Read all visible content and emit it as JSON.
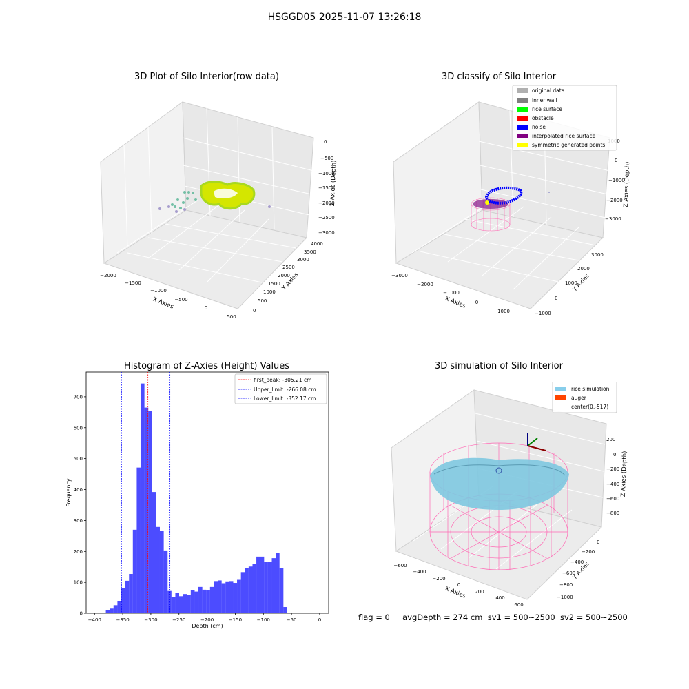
{
  "suptitle": "HSGGD05 2025-11-07 13:26:18",
  "panels": {
    "raw": {
      "title": "3D Plot of Silo Interior(row data)",
      "xlabel": "X Axies",
      "ylabel": "Y Axies",
      "zlabel": "Z Axies (Depth)",
      "xticks": [
        "−2000",
        "−1500",
        "−1000",
        "−500",
        "0",
        "500"
      ],
      "yticks": [
        "0",
        "500",
        "1000",
        "1500",
        "2000",
        "2500",
        "3000",
        "3500",
        "4000"
      ],
      "zticks": [
        "0",
        "−500",
        "−1000",
        "−1500",
        "−2000",
        "−2500",
        "−3000"
      ]
    },
    "classify": {
      "title": "3D classify of Silo Interior",
      "xlabel": "X Axies",
      "ylabel": "Y Axies",
      "zlabel": "Z Axies (Depth)",
      "xticks": [
        "−3000",
        "−2000",
        "−1000",
        "0",
        "1000"
      ],
      "yticks": [
        "−1000",
        "0",
        "1000",
        "2000",
        "3000"
      ],
      "zticks": [
        "1000",
        "0",
        "−1000",
        "−2000",
        "−3000"
      ],
      "legend": [
        {
          "label": "original data",
          "color": "#b0b0b0"
        },
        {
          "label": "inner wall",
          "color": "#808080"
        },
        {
          "label": "rice surface",
          "color": "#00ff00"
        },
        {
          "label": "obstacle",
          "color": "#ff0000"
        },
        {
          "label": "noise",
          "color": "#0000ff"
        },
        {
          "label": "interpolated rice surface",
          "color": "#800080"
        },
        {
          "label": "symmetric generated points",
          "color": "#ffff00"
        }
      ]
    },
    "simulation": {
      "title": "3D simulation of Silo Interior",
      "xlabel": "X Axies",
      "ylabel": "Y Axies",
      "zlabel": "Z Axies (Depth)",
      "xticks": [
        "−600",
        "−400",
        "−200",
        "0",
        "200",
        "400",
        "600"
      ],
      "yticks": [
        "−1000",
        "−800",
        "−600",
        "−400",
        "−200",
        "0"
      ],
      "zticks": [
        "200",
        "0",
        "−200",
        "−400",
        "−600",
        "−800"
      ],
      "legend": [
        {
          "label": "silo",
          "color": "#ff69b4"
        },
        {
          "label": "rice simulation",
          "color": "#87ceeb"
        },
        {
          "label": "auger",
          "color": "#ff4500"
        },
        {
          "label": "center(0,-517)",
          "color": ""
        }
      ]
    }
  },
  "chart_data": {
    "type": "bar",
    "title": "Histogram of Z-Axies (Height) Values",
    "xlabel": "Depth (cm)",
    "ylabel": "Frequency",
    "xlim": [
      -415,
      16
    ],
    "ylim": [
      0,
      780
    ],
    "xticks": [
      -400,
      -350,
      -300,
      -250,
      -200,
      -150,
      -100,
      -50,
      0
    ],
    "yticks": [
      0,
      100,
      200,
      300,
      400,
      500,
      600,
      700
    ],
    "bar_color": "#0000ff",
    "bins": [
      {
        "x0": -380.0,
        "x1": -373.1,
        "count": 10
      },
      {
        "x0": -373.1,
        "x1": -366.3,
        "count": 15
      },
      {
        "x0": -366.3,
        "x1": -359.4,
        "count": 26
      },
      {
        "x0": -359.4,
        "x1": -352.6,
        "count": 38
      },
      {
        "x0": -352.6,
        "x1": -345.7,
        "count": 82
      },
      {
        "x0": -345.7,
        "x1": -338.8,
        "count": 105
      },
      {
        "x0": -338.8,
        "x1": -332.0,
        "count": 127
      },
      {
        "x0": -332.0,
        "x1": -325.1,
        "count": 270
      },
      {
        "x0": -325.1,
        "x1": -318.3,
        "count": 471
      },
      {
        "x0": -318.3,
        "x1": -311.4,
        "count": 743
      },
      {
        "x0": -311.4,
        "x1": -304.5,
        "count": 665
      },
      {
        "x0": -304.5,
        "x1": -297.7,
        "count": 654
      },
      {
        "x0": -297.7,
        "x1": -290.8,
        "count": 392
      },
      {
        "x0": -290.8,
        "x1": -284.0,
        "count": 279
      },
      {
        "x0": -284.0,
        "x1": -277.1,
        "count": 266
      },
      {
        "x0": -277.1,
        "x1": -270.2,
        "count": 203
      },
      {
        "x0": -270.2,
        "x1": -263.4,
        "count": 72
      },
      {
        "x0": -263.4,
        "x1": -256.5,
        "count": 52
      },
      {
        "x0": -256.5,
        "x1": -249.7,
        "count": 65
      },
      {
        "x0": -249.7,
        "x1": -242.8,
        "count": 55
      },
      {
        "x0": -242.8,
        "x1": -235.9,
        "count": 62
      },
      {
        "x0": -235.9,
        "x1": -229.1,
        "count": 58
      },
      {
        "x0": -229.1,
        "x1": -222.2,
        "count": 74
      },
      {
        "x0": -222.2,
        "x1": -215.4,
        "count": 70
      },
      {
        "x0": -215.4,
        "x1": -208.5,
        "count": 85
      },
      {
        "x0": -208.5,
        "x1": -201.6,
        "count": 76
      },
      {
        "x0": -201.6,
        "x1": -194.8,
        "count": 75
      },
      {
        "x0": -194.8,
        "x1": -187.9,
        "count": 85
      },
      {
        "x0": -187.9,
        "x1": -181.1,
        "count": 104
      },
      {
        "x0": -181.1,
        "x1": -174.2,
        "count": 106
      },
      {
        "x0": -174.2,
        "x1": -167.3,
        "count": 97
      },
      {
        "x0": -167.3,
        "x1": -160.5,
        "count": 103
      },
      {
        "x0": -160.5,
        "x1": -153.6,
        "count": 104
      },
      {
        "x0": -153.6,
        "x1": -146.8,
        "count": 98
      },
      {
        "x0": -146.8,
        "x1": -139.9,
        "count": 108
      },
      {
        "x0": -139.9,
        "x1": -133.0,
        "count": 133
      },
      {
        "x0": -133.0,
        "x1": -126.2,
        "count": 145
      },
      {
        "x0": -126.2,
        "x1": -119.3,
        "count": 151
      },
      {
        "x0": -119.3,
        "x1": -112.5,
        "count": 160
      },
      {
        "x0": -112.5,
        "x1": -105.6,
        "count": 183
      },
      {
        "x0": -105.6,
        "x1": -98.7,
        "count": 183
      },
      {
        "x0": -98.7,
        "x1": -91.9,
        "count": 165
      },
      {
        "x0": -91.9,
        "x1": -85.0,
        "count": 165
      },
      {
        "x0": -85.0,
        "x1": -78.2,
        "count": 178
      },
      {
        "x0": -78.2,
        "x1": -71.3,
        "count": 196
      },
      {
        "x0": -71.3,
        "x1": -64.4,
        "count": 145
      },
      {
        "x0": -64.4,
        "x1": -57.6,
        "count": 20
      }
    ],
    "vlines": [
      {
        "label": "first_peak: -305.21 cm",
        "x": -305.21,
        "color": "#ff0000"
      },
      {
        "label": "Upper_limit: -266.08 cm",
        "x": -266.08,
        "color": "#0000ff"
      },
      {
        "label": "Lower_limit: -352.17 cm",
        "x": -352.17,
        "color": "#0000ff"
      }
    ]
  },
  "footer": {
    "flag": "flag = 0",
    "avg_depth": "avgDepth = 274 cm",
    "sv1": "sv1 = 500~2500",
    "sv2": "sv2 = 500~2500"
  }
}
